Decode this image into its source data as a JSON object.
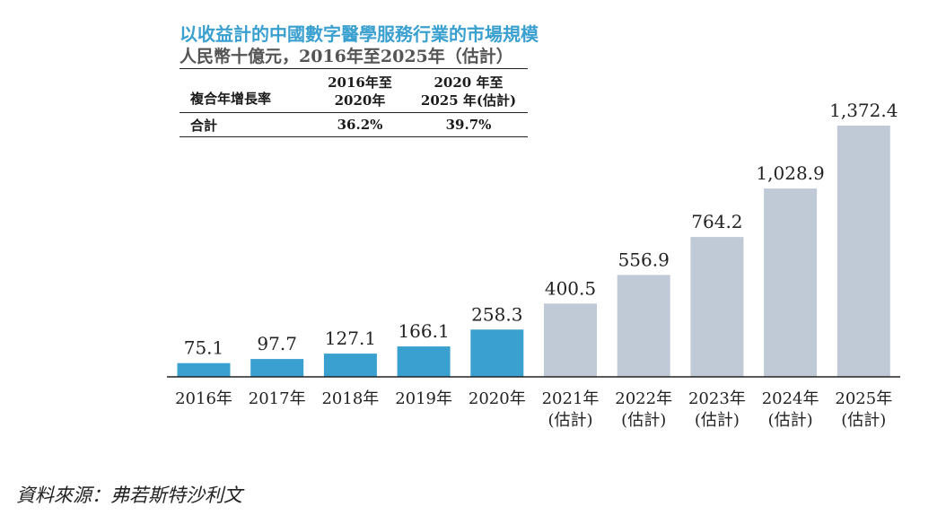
{
  "title": "以收益計的中國數字醫學服務行業的市場規模",
  "subtitle": "人民幣十億元，2016年至2025年（估計）",
  "cagr_table": {
    "row_label_header": "複合年增長率",
    "col1_header_line1": "2016年至",
    "col1_header_line2": "2020年",
    "col2_header_line1": "2020 年至",
    "col2_header_line2": "2025 年(估計)",
    "row_label": "合計",
    "col1_value": "36.2%",
    "col2_value": "39.7%"
  },
  "source": "資料來源：弗若斯特沙利文",
  "colors": {
    "actual": "#3aa0cf",
    "estimate": "#c0cad6",
    "title": "#3aa0cf",
    "subtitle": "#555555"
  },
  "chart_data": {
    "type": "bar",
    "categories": [
      "2016年",
      "2017年",
      "2018年",
      "2019年",
      "2020年",
      "2021年",
      "2022年",
      "2023年",
      "2024年",
      "2025年"
    ],
    "category_notes": [
      "",
      "",
      "",
      "",
      "",
      "(估計)",
      "(估計)",
      "(估計)",
      "(估計)",
      "(估計)"
    ],
    "values": [
      75.1,
      97.7,
      127.1,
      166.1,
      258.3,
      400.5,
      556.9,
      764.2,
      1028.9,
      1372.4
    ],
    "value_labels": [
      "75.1",
      "97.7",
      "127.1",
      "166.1",
      "258.3",
      "400.5",
      "556.9",
      "764.2",
      "1,028.9",
      "1,372.4"
    ],
    "estimated": [
      false,
      false,
      false,
      false,
      false,
      true,
      true,
      true,
      true,
      true
    ],
    "ylim": [
      0,
      1372.4
    ],
    "grid": false,
    "legend": "none"
  }
}
